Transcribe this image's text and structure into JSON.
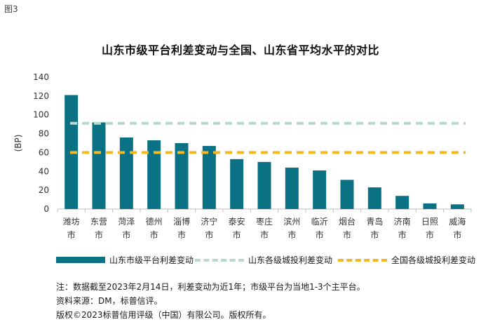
{
  "figure_label": "图3",
  "chart_data": {
    "type": "bar",
    "title": "山东市级平台利差变动与全国、山东省平均水平的对比",
    "ylabel": "(BP)",
    "ylim": [
      0,
      140
    ],
    "yticks": [
      0,
      20,
      40,
      60,
      80,
      100,
      120,
      140
    ],
    "categories": [
      [
        "潍坊",
        "市"
      ],
      [
        "东营",
        "市"
      ],
      [
        "菏泽",
        "市"
      ],
      [
        "德州",
        "市"
      ],
      [
        "淄博",
        "市"
      ],
      [
        "济宁",
        "市"
      ],
      [
        "泰安",
        "市"
      ],
      [
        "枣庄",
        "市"
      ],
      [
        "滨州",
        "市"
      ],
      [
        "临沂",
        "市"
      ],
      [
        "烟台",
        "市"
      ],
      [
        "青岛",
        "市"
      ],
      [
        "济南",
        "市"
      ],
      [
        "日照",
        "市"
      ],
      [
        "威海",
        "市"
      ]
    ],
    "series": [
      {
        "name": "山东市级平台利差变动",
        "type": "bar",
        "color": "#0b7285",
        "values": [
          121,
          92,
          76,
          73,
          70,
          67,
          53,
          50,
          44,
          41,
          31,
          23,
          14,
          6,
          5
        ]
      },
      {
        "name": "山东各级城投利差变动",
        "type": "line",
        "style": "dashed",
        "color": "#b9d9c9",
        "value": 91
      },
      {
        "name": "全国各级城投利差变动",
        "type": "line",
        "style": "dashed",
        "color": "#f2b825",
        "value": 60
      }
    ],
    "legend_position": "bottom",
    "grid": false
  },
  "notes": [
    "注：数据截至2023年2月14日，利差变动为近1年；市级平台为当地1-3个主平台。",
    "资料来源：DM，标普信评。",
    "版权©2023标普信用评级（中国）有限公司。版权所有。"
  ]
}
